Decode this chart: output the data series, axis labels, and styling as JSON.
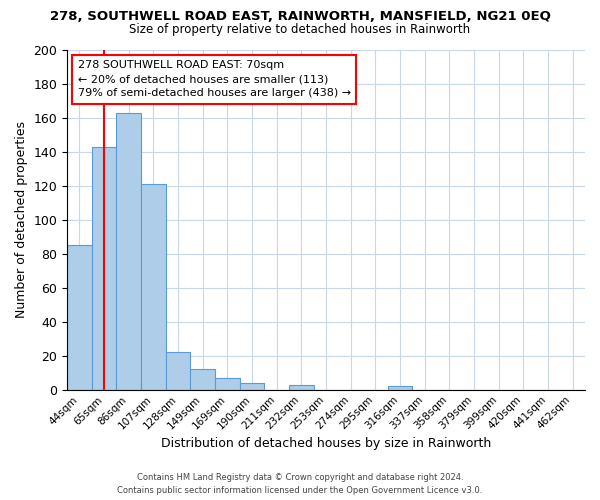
{
  "title": "278, SOUTHWELL ROAD EAST, RAINWORTH, MANSFIELD, NG21 0EQ",
  "subtitle": "Size of property relative to detached houses in Rainworth",
  "xlabel": "Distribution of detached houses by size in Rainworth",
  "ylabel": "Number of detached properties",
  "bar_labels": [
    "44sqm",
    "65sqm",
    "86sqm",
    "107sqm",
    "128sqm",
    "149sqm",
    "169sqm",
    "190sqm",
    "211sqm",
    "232sqm",
    "253sqm",
    "274sqm",
    "295sqm",
    "316sqm",
    "337sqm",
    "358sqm",
    "379sqm",
    "399sqm",
    "420sqm",
    "441sqm",
    "462sqm"
  ],
  "bar_values": [
    85,
    143,
    163,
    121,
    22,
    12,
    7,
    4,
    0,
    3,
    0,
    0,
    0,
    2,
    0,
    0,
    0,
    0,
    0,
    0,
    0
  ],
  "bar_color": "#aecde8",
  "bar_edge_color": "#5b9bd5",
  "grid_color": "#c8d8e8",
  "background_color": "#ffffff",
  "ylim": [
    0,
    200
  ],
  "yticks": [
    0,
    20,
    40,
    60,
    80,
    100,
    120,
    140,
    160,
    180,
    200
  ],
  "red_line_x": 1.0,
  "annotation_title": "278 SOUTHWELL ROAD EAST: 70sqm",
  "annotation_line1": "← 20% of detached houses are smaller (113)",
  "annotation_line2": "79% of semi-detached houses are larger (438) →",
  "footer1": "Contains HM Land Registry data © Crown copyright and database right 2024.",
  "footer2": "Contains public sector information licensed under the Open Government Licence v3.0."
}
